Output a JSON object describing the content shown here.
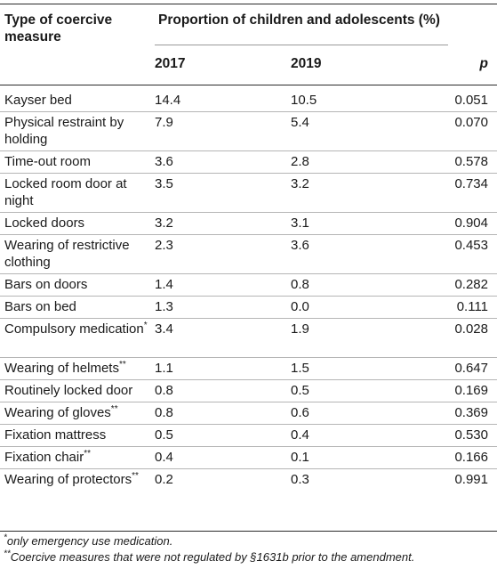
{
  "table": {
    "header": {
      "type_col": "Type of coercive measure",
      "group": "Proportion of children and adolescents (%)",
      "year_a": "2017",
      "year_b": "2019",
      "p_col": "p"
    },
    "rows": [
      {
        "measure": "Kayser bed",
        "mark": "",
        "v2017": "14.4",
        "v2019": "10.5",
        "p": "0.051"
      },
      {
        "measure": "Physical restraint by holding",
        "mark": "",
        "v2017": "7.9",
        "v2019": "5.4",
        "p": "0.070"
      },
      {
        "measure": "Time-out room",
        "mark": "",
        "v2017": "3.6",
        "v2019": "2.8",
        "p": "0.578"
      },
      {
        "measure": "Locked room door at night",
        "mark": "",
        "v2017": "3.5",
        "v2019": "3.2",
        "p": "0.734"
      },
      {
        "measure": "Locked doors",
        "mark": "",
        "v2017": "3.2",
        "v2019": "3.1",
        "p": "0.904"
      },
      {
        "measure": "Wearing of restrictive clothing",
        "mark": "",
        "v2017": "2.3",
        "v2019": "3.6",
        "p": "0.453"
      },
      {
        "measure": "Bars on doors",
        "mark": "",
        "v2017": "1.4",
        "v2019": "0.8",
        "p": "0.282"
      },
      {
        "measure": "Bars on bed",
        "mark": "",
        "v2017": "1.3",
        "v2019": "0.0",
        "p": "0.111"
      },
      {
        "measure": "Compulsory medication",
        "mark": "*",
        "v2017": "3.4",
        "v2019": "1.9",
        "p": "0.028"
      },
      {
        "measure": "Wearing of helmets",
        "mark": "**",
        "v2017": "1.1",
        "v2019": "1.5",
        "p": "0.647"
      },
      {
        "measure": "Routinely locked door",
        "mark": "",
        "v2017": "0.8",
        "v2019": "0.5",
        "p": "0.169"
      },
      {
        "measure": "Wearing of gloves",
        "mark": "**",
        "v2017": "0.8",
        "v2019": "0.6",
        "p": "0.369"
      },
      {
        "measure": "Fixation mattress",
        "mark": "",
        "v2017": "0.5",
        "v2019": "0.4",
        "p": "0.530"
      },
      {
        "measure": "Fixation chair",
        "mark": "**",
        "v2017": "0.4",
        "v2019": "0.1",
        "p": "0.166"
      },
      {
        "measure": "Wearing of protectors",
        "mark": "**",
        "v2017": "0.2",
        "v2019": "0.3",
        "p": "0.991"
      }
    ]
  },
  "notes": {
    "note1_mark": "*",
    "note1_text": "only emergency use medication.",
    "note2_mark": "**",
    "note2_text": "Coercive measures that were not regulated by §1631b prior to the amendment."
  }
}
